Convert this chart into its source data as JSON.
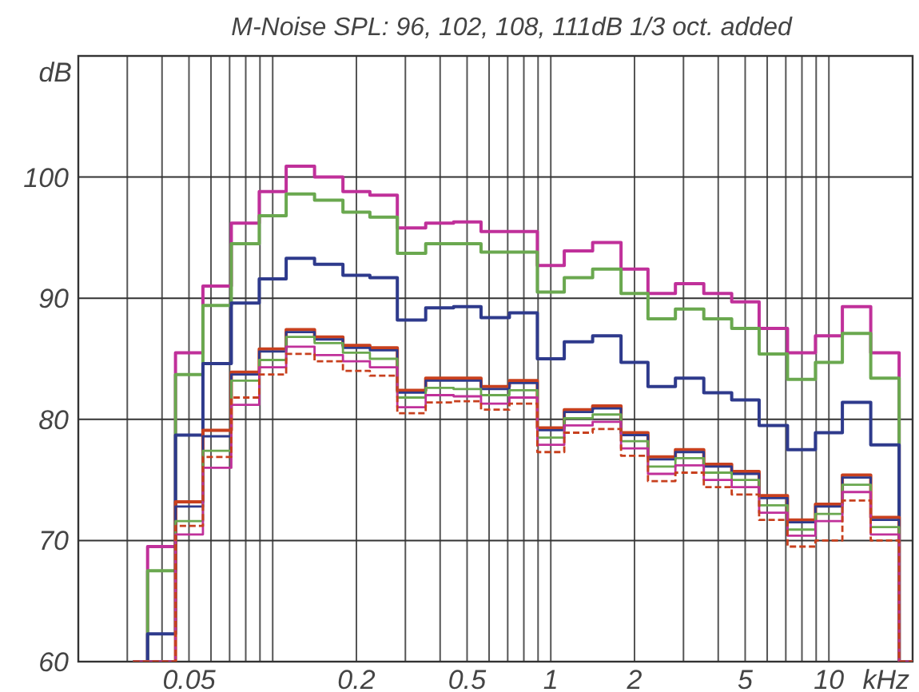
{
  "chart_data": {
    "type": "step",
    "title": "M-Noise SPL: 96, 102, 108, 111dB  1/3 oct. added",
    "xlabel": "kHz",
    "ylabel": "dB",
    "x": [
      0.0315,
      0.04,
      0.05,
      0.063,
      0.08,
      0.1,
      0.125,
      0.16,
      0.2,
      0.25,
      0.315,
      0.4,
      0.5,
      0.63,
      0.8,
      1,
      1.25,
      1.6,
      2,
      2.5,
      3.15,
      4,
      5,
      6.3,
      8,
      10,
      12.5,
      16,
      20
    ],
    "log": "x",
    "grid": true,
    "xlim": [
      0.02,
      20
    ],
    "ylim": [
      60,
      110
    ],
    "xticks": [
      {
        "value": 0.03,
        "label": null
      },
      {
        "value": 0.04,
        "label": null
      },
      0.05,
      {
        "value": 0.06,
        "label": null
      },
      {
        "value": 0.07,
        "label": null
      },
      {
        "value": 0.08,
        "label": null
      },
      {
        "value": 0.09,
        "label": null
      },
      {
        "value": 0.1,
        "label": null
      },
      0.2,
      {
        "value": 0.3,
        "label": null
      },
      {
        "value": 0.4,
        "label": null
      },
      0.5,
      {
        "value": 0.6,
        "label": null
      },
      {
        "value": 0.7,
        "label": null
      },
      {
        "value": 0.8,
        "label": null
      },
      {
        "value": 0.9,
        "label": null
      },
      1,
      2,
      {
        "value": 3,
        "label": null
      },
      {
        "value": 4,
        "label": null
      },
      5,
      {
        "value": 6,
        "label": null
      },
      {
        "value": 7,
        "label": null
      },
      {
        "value": 8,
        "label": null
      },
      {
        "value": 9,
        "label": null
      },
      10
    ],
    "yticks": [
      60,
      70,
      80,
      90,
      100
    ],
    "series": [
      {
        "color": "#c0309a",
        "values": [
          60,
          69.5,
          85.5,
          91,
          96.2,
          98.8,
          100.9,
          100,
          98.8,
          98.5,
          95.8,
          96.2,
          96.3,
          95.5,
          95.5,
          92.7,
          93.9,
          94.6,
          92.4,
          90.4,
          91.2,
          90.4,
          89.7,
          87.5,
          85.5,
          86.9,
          89.3,
          85.5,
          60
        ]
      },
      {
        "color": "#6aa84f",
        "values": [
          60,
          67.5,
          83.7,
          89.4,
          94.5,
          96.8,
          98.6,
          98.1,
          97.1,
          96.7,
          93.7,
          94.5,
          94.5,
          93.8,
          93.8,
          90.5,
          91.7,
          92.4,
          90.4,
          88.3,
          89.1,
          88.3,
          87.5,
          85.4,
          83.3,
          84.7,
          87.1,
          83.4,
          60
        ]
      },
      {
        "color": "#2e3a8c",
        "values": [
          60,
          62.3,
          78.7,
          84.6,
          89.6,
          91.6,
          93.3,
          92.8,
          91.9,
          91.7,
          88.2,
          89.2,
          89.3,
          88.4,
          88.8,
          85.0,
          86.4,
          86.9,
          84.7,
          82.7,
          83.4,
          82.2,
          81.6,
          79.5,
          77.5,
          78.9,
          81.4,
          77.9,
          60
        ]
      },
      {
        "color": "#c8401e",
        "values": [
          60,
          60,
          73.2,
          79.1,
          83.9,
          85.8,
          87.4,
          86.8,
          86.1,
          85.9,
          82.4,
          83.4,
          83.4,
          82.7,
          83.2,
          79.3,
          80.8,
          81.1,
          78.9,
          76.9,
          77.5,
          76.3,
          75.7,
          73.7,
          71.7,
          73.0,
          75.4,
          71.9,
          60
        ]
      },
      {
        "color": "#2e3a8c",
        "values": [
          60,
          60,
          72.8,
          78.6,
          83.7,
          85.6,
          87.2,
          86.6,
          85.9,
          85.7,
          82.2,
          83.2,
          83.2,
          82.5,
          83.0,
          79.1,
          80.6,
          80.9,
          78.7,
          76.7,
          77.3,
          76.1,
          75.5,
          73.5,
          71.5,
          72.8,
          75.2,
          71.7,
          60
        ]
      },
      {
        "color": "#6aa84f",
        "values": [
          60,
          60,
          71.6,
          77.4,
          83.2,
          84.9,
          86.8,
          86.3,
          85.5,
          85.0,
          81.8,
          82.6,
          82.5,
          82.0,
          82.4,
          78.5,
          80.1,
          80.4,
          78.2,
          76.1,
          76.8,
          75.6,
          75.0,
          72.9,
          70.9,
          72.2,
          74.6,
          71.1,
          60
        ]
      },
      {
        "color": "#c0309a",
        "values": [
          60,
          60,
          70.5,
          76.0,
          81.2,
          84.3,
          86.0,
          85.3,
          84.8,
          84.3,
          81.0,
          82.0,
          81.9,
          81.3,
          81.8,
          77.9,
          79.5,
          79.8,
          77.6,
          75.5,
          76.2,
          75.0,
          74.4,
          72.3,
          70.4,
          71.6,
          74.0,
          70.5,
          60
        ]
      },
      {
        "color": "#c8401e",
        "line_style": "dashed",
        "values": [
          60,
          60,
          71.2,
          76.9,
          81.8,
          83.7,
          85.4,
          84.8,
          84.0,
          83.6,
          80.5,
          81.4,
          81.5,
          80.8,
          81.3,
          77.3,
          78.9,
          79.2,
          77.0,
          74.9,
          75.6,
          74.4,
          73.8,
          71.7,
          69.5,
          70.0,
          73.3,
          70.0,
          60
        ]
      }
    ]
  }
}
